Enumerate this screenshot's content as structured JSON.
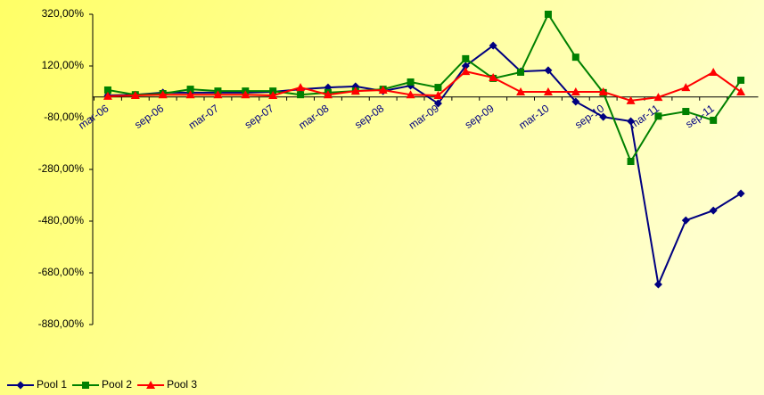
{
  "chart_data": {
    "type": "line",
    "categories": [
      "mar-06",
      null,
      "sep-06",
      null,
      "mar-07",
      null,
      "sep-07",
      null,
      "mar-08",
      null,
      "sep-08",
      null,
      "mar-09",
      null,
      "sep-09",
      null,
      "mar-10",
      null,
      "sep-10",
      null,
      "mar-11",
      null,
      "sep-11",
      null
    ],
    "ylim": [
      -880,
      320
    ],
    "yticks": [
      {
        "value": 320,
        "label": "320,00%"
      },
      {
        "value": 120,
        "label": "120,00%"
      },
      {
        "value": -80,
        "label": "-80,00%"
      },
      {
        "value": -280,
        "label": "-280,00%"
      },
      {
        "value": -480,
        "label": "-480,00%"
      },
      {
        "value": -680,
        "label": "-680,00%"
      },
      {
        "value": -880,
        "label": "-880,00%"
      }
    ],
    "legend": "bottom-left",
    "series": [
      {
        "name": "Pool 1",
        "color": "#000080",
        "marker": "diamond",
        "values": [
          6,
          9,
          17,
          17,
          17,
          17,
          20,
          30,
          37,
          41,
          23,
          44,
          -25,
          120,
          199,
          99,
          103,
          -18,
          -77,
          -94,
          -725,
          -477,
          -439,
          -373
        ]
      },
      {
        "name": "Pool 2",
        "color": "#008000",
        "marker": "square",
        "values": [
          27,
          9,
          13,
          30,
          23,
          23,
          23,
          9,
          17,
          23,
          30,
          58,
          37,
          148,
          72,
          96,
          320,
          154,
          17,
          -249,
          -74,
          -56,
          -90,
          65
        ]
      },
      {
        "name": "Pool 3",
        "color": "#ff0000",
        "marker": "triangle",
        "values": [
          3,
          6,
          9,
          9,
          9,
          9,
          6,
          37,
          9,
          23,
          27,
          9,
          6,
          99,
          75,
          20,
          20,
          20,
          20,
          -14,
          -1,
          37,
          96,
          20
        ]
      }
    ]
  }
}
